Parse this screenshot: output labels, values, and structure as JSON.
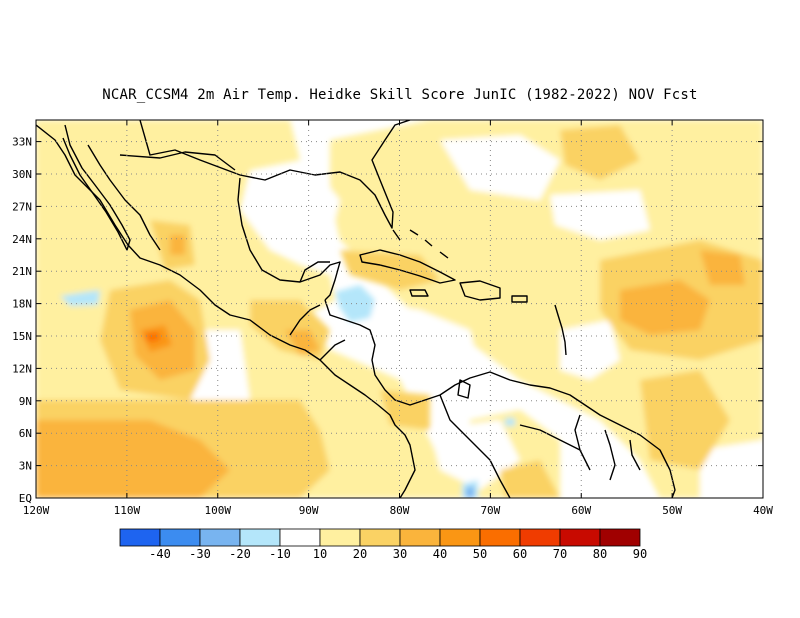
{
  "title": "NCAR_CCSM4  2m Air Temp. Heidke Skill Score JunIC (1982-2022) NOV Fcst",
  "map": {
    "lat_labels": [
      "33N",
      "30N",
      "27N",
      "24N",
      "21N",
      "18N",
      "15N",
      "12N",
      "9N",
      "6N",
      "3N",
      "EQ"
    ],
    "lat_values": [
      33,
      30,
      27,
      24,
      21,
      18,
      15,
      12,
      9,
      6,
      3,
      0
    ],
    "lon_labels": [
      "120W",
      "110W",
      "100W",
      "90W",
      "80W",
      "70W",
      "60W",
      "50W",
      "40W"
    ],
    "lon_values": [
      -120,
      -110,
      -100,
      -90,
      -80,
      -70,
      -60,
      -50,
      -40
    ],
    "lat_range": [
      0,
      35
    ],
    "lon_range": [
      -120,
      -40
    ],
    "grid": true
  },
  "colorbar": {
    "labels": [
      "-40",
      "-30",
      "-20",
      "-10",
      "10",
      "20",
      "30",
      "40",
      "50",
      "60",
      "70",
      "80",
      "90"
    ],
    "colors": [
      "#1e64f0",
      "#3c8cf0",
      "#78b4f0",
      "#b4e6fa",
      "#ffffff",
      "#fff0a0",
      "#fad264",
      "#fab43c",
      "#fa9614",
      "#fa6e00",
      "#f03c00",
      "#c80a00",
      "#a00000"
    ]
  }
}
